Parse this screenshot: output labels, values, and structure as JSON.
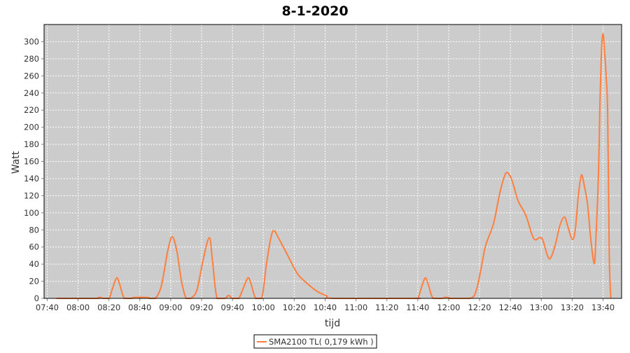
{
  "chart_data": {
    "type": "line",
    "title": "8-1-2020",
    "xlabel": "tijd",
    "ylabel": "Watt",
    "xlim": [
      "07:38",
      "13:52"
    ],
    "ylim": [
      0,
      320
    ],
    "x_ticks": [
      "07:40",
      "08:00",
      "08:20",
      "08:40",
      "09:00",
      "09:20",
      "09:40",
      "10:00",
      "10:20",
      "10:40",
      "11:00",
      "11:20",
      "11:40",
      "12:00",
      "12:20",
      "12:40",
      "13:00",
      "13:20",
      "13:40"
    ],
    "y_ticks": [
      0,
      20,
      40,
      60,
      80,
      100,
      120,
      140,
      160,
      180,
      200,
      220,
      240,
      260,
      280,
      300
    ],
    "grid": true,
    "legend_placement": "bottom",
    "background_color": "#cccccc",
    "series": [
      {
        "name": "SMA2100 TL( 0,179 kWh )",
        "color": "#ff7f3f",
        "points": [
          [
            "07:46",
            0
          ],
          [
            "08:12",
            0
          ],
          [
            "08:13",
            1
          ],
          [
            "08:15",
            1
          ],
          [
            "08:16",
            0
          ],
          [
            "08:20",
            0
          ],
          [
            "08:22",
            10
          ],
          [
            "08:25",
            24
          ],
          [
            "08:27",
            16
          ],
          [
            "08:30",
            0
          ],
          [
            "08:35",
            0
          ],
          [
            "08:36",
            1
          ],
          [
            "08:45",
            1
          ],
          [
            "08:46",
            0
          ],
          [
            "08:50",
            0
          ],
          [
            "08:54",
            15
          ],
          [
            "08:58",
            55
          ],
          [
            "09:01",
            72
          ],
          [
            "09:04",
            55
          ],
          [
            "09:07",
            20
          ],
          [
            "09:10",
            0
          ],
          [
            "09:13",
            0
          ],
          [
            "09:17",
            10
          ],
          [
            "09:21",
            45
          ],
          [
            "09:25",
            71
          ],
          [
            "09:27",
            45
          ],
          [
            "09:30",
            0
          ],
          [
            "09:35",
            0
          ],
          [
            "09:37",
            3
          ],
          [
            "09:38",
            3
          ],
          [
            "09:40",
            0
          ],
          [
            "09:44",
            0
          ],
          [
            "09:47",
            12
          ],
          [
            "09:50",
            24
          ],
          [
            "09:52",
            17
          ],
          [
            "09:55",
            0
          ],
          [
            "09:59",
            0
          ],
          [
            "10:02",
            40
          ],
          [
            "10:05",
            72
          ],
          [
            "10:07",
            79
          ],
          [
            "10:10",
            70
          ],
          [
            "10:15",
            53
          ],
          [
            "10:22",
            29
          ],
          [
            "10:28",
            18
          ],
          [
            "10:35",
            8
          ],
          [
            "10:41",
            3
          ],
          [
            "10:46",
            0
          ],
          [
            "11:37",
            0
          ],
          [
            "11:40",
            0
          ],
          [
            "11:43",
            16
          ],
          [
            "11:45",
            24
          ],
          [
            "11:47",
            15
          ],
          [
            "11:50",
            0
          ],
          [
            "11:56",
            0
          ],
          [
            "11:57",
            1
          ],
          [
            "12:00",
            1
          ],
          [
            "12:01",
            0
          ],
          [
            "12:14",
            0
          ],
          [
            "12:18",
            10
          ],
          [
            "12:21",
            35
          ],
          [
            "12:24",
            62
          ],
          [
            "12:29",
            87
          ],
          [
            "12:33",
            122
          ],
          [
            "12:36",
            142
          ],
          [
            "12:38",
            147
          ],
          [
            "12:41",
            138
          ],
          [
            "12:45",
            114
          ],
          [
            "12:50",
            97
          ],
          [
            "12:55",
            70
          ],
          [
            "12:59",
            71
          ],
          [
            "13:01",
            68
          ],
          [
            "13:04",
            50
          ],
          [
            "13:06",
            47
          ],
          [
            "13:09",
            62
          ],
          [
            "13:12",
            85
          ],
          [
            "13:15",
            95
          ],
          [
            "13:17",
            85
          ],
          [
            "13:20",
            69
          ],
          [
            "13:22",
            80
          ],
          [
            "13:24",
            120
          ],
          [
            "13:26",
            144
          ],
          [
            "13:28",
            130
          ],
          [
            "13:30",
            109
          ],
          [
            "13:32",
            70
          ],
          [
            "13:34",
            42
          ],
          [
            "13:35",
            55
          ],
          [
            "13:37",
            144
          ],
          [
            "13:38",
            230
          ],
          [
            "13:39",
            290
          ],
          [
            "13:40",
            309
          ],
          [
            "13:41",
            288
          ],
          [
            "13:42",
            260
          ],
          [
            "13:43",
            215
          ],
          [
            "13:44",
            51
          ],
          [
            "13:45",
            0
          ]
        ]
      }
    ]
  }
}
